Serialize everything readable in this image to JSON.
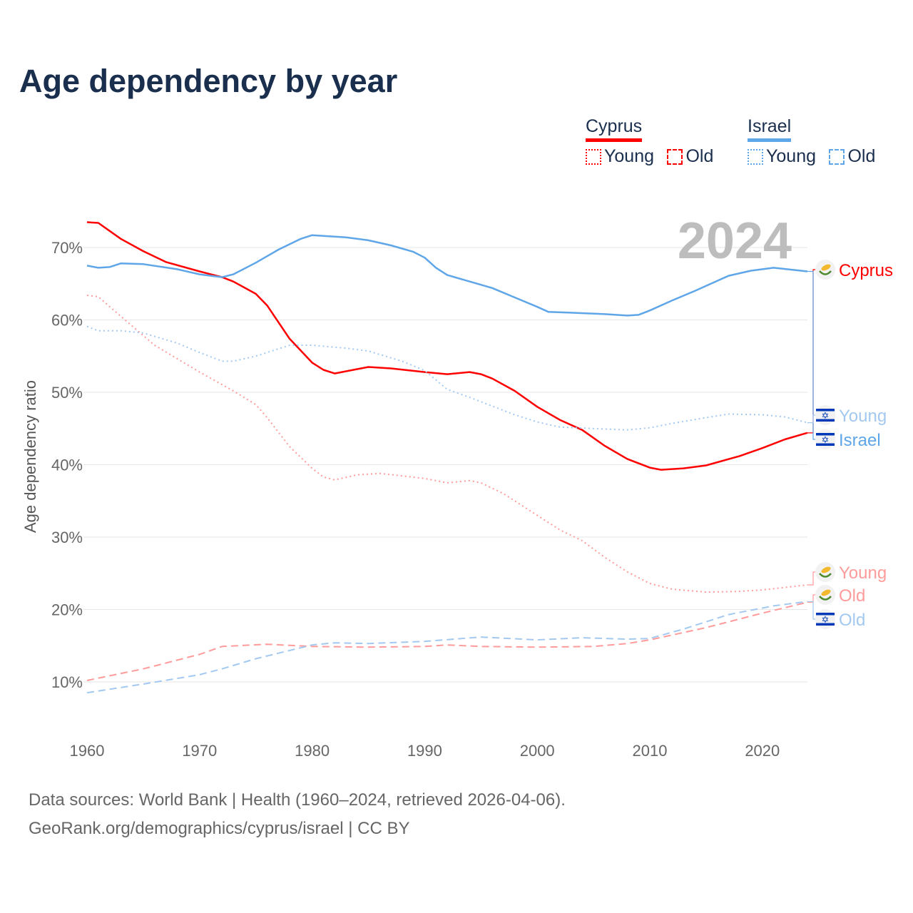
{
  "chart_data": {
    "type": "line",
    "title": "Age dependency by year",
    "xlabel": "",
    "ylabel": "Age dependency ratio",
    "xlim": [
      1960,
      2024
    ],
    "ylim": [
      0,
      75
    ],
    "x_ticks": [
      "1960",
      "1970",
      "1980",
      "1990",
      "2000",
      "2010",
      "2020"
    ],
    "y_ticks": [
      "10%",
      "20%",
      "30%",
      "40%",
      "50%",
      "60%",
      "70%"
    ],
    "y_tick_values": [
      10,
      20,
      30,
      40,
      50,
      60,
      70
    ],
    "x_tick_values": [
      1960,
      1970,
      1980,
      1990,
      2000,
      2010,
      2020
    ],
    "current_year": "2024",
    "grid": true,
    "legend_position": "top-right",
    "series": [
      {
        "name": "Cyprus",
        "label": "Cyprus",
        "kind": "total",
        "color": "#ff0000",
        "flag": "cyprus",
        "x": [
          1960,
          1961,
          1963,
          1965,
          1967,
          1970,
          1972,
          1973,
          1975,
          1976,
          1978,
          1980,
          1981,
          1982,
          1984,
          1985,
          1987,
          1990,
          1992,
          1994,
          1995,
          1996,
          1998,
          2000,
          2002,
          2004,
          2006,
          2008,
          2010,
          2011,
          2013,
          2015,
          2018,
          2020,
          2022,
          2024
        ],
        "values": [
          73.5,
          73.4,
          71.2,
          69.5,
          68.0,
          66.7,
          65.9,
          65.3,
          63.6,
          62.0,
          57.4,
          54.1,
          53.1,
          52.6,
          53.2,
          53.5,
          53.3,
          52.8,
          52.5,
          52.8,
          52.5,
          51.9,
          50.2,
          48.0,
          46.2,
          44.8,
          42.6,
          40.8,
          39.6,
          39.3,
          39.5,
          39.9,
          41.2,
          42.3,
          43.5,
          44.4
        ]
      },
      {
        "name": "Israel",
        "label": "Israel",
        "kind": "total",
        "color": "#5fa6e8",
        "flag": "israel",
        "x": [
          1960,
          1961,
          1962,
          1963,
          1965,
          1968,
          1970,
          1972,
          1973,
          1975,
          1977,
          1979,
          1980,
          1983,
          1985,
          1987,
          1989,
          1990,
          1991,
          1992,
          1994,
          1996,
          1998,
          2000,
          2001,
          2003,
          2006,
          2008,
          2009,
          2010,
          2012,
          2014,
          2017,
          2019,
          2021,
          2024
        ],
        "values": [
          67.5,
          67.2,
          67.3,
          67.8,
          67.7,
          67.0,
          66.3,
          65.9,
          66.3,
          67.9,
          69.7,
          71.2,
          71.7,
          71.4,
          71.0,
          70.3,
          69.4,
          68.6,
          67.2,
          66.2,
          65.3,
          64.4,
          63.1,
          61.8,
          61.1,
          61.0,
          60.8,
          60.6,
          60.7,
          61.3,
          62.7,
          64.0,
          66.1,
          66.8,
          67.2,
          66.7
        ]
      },
      {
        "name": "Cyprus Young",
        "label": "Young",
        "kind": "young",
        "color": "#ff9b9b",
        "flag": "cyprus",
        "x": [
          1960,
          1961,
          1963,
          1966,
          1970,
          1973,
          1975,
          1976,
          1978,
          1980,
          1981,
          1982,
          1984,
          1986,
          1990,
          1992,
          1994,
          1995,
          1997,
          2000,
          2002,
          2004,
          2006,
          2008,
          2010,
          2012,
          2015,
          2018,
          2020,
          2024
        ],
        "values": [
          63.4,
          63.2,
          60.5,
          56.5,
          52.8,
          50.2,
          48.3,
          46.5,
          42.5,
          39.5,
          38.3,
          37.9,
          38.6,
          38.8,
          38.1,
          37.5,
          37.8,
          37.5,
          36.0,
          33.0,
          31.0,
          29.5,
          27.2,
          25.2,
          23.6,
          22.8,
          22.4,
          22.5,
          22.7,
          23.4
        ]
      },
      {
        "name": "Israel Young",
        "label": "Young",
        "kind": "young",
        "color": "#a3c9f0",
        "flag": "israel",
        "x": [
          1960,
          1961,
          1963,
          1965,
          1968,
          1970,
          1972,
          1973,
          1975,
          1978,
          1980,
          1983,
          1985,
          1988,
          1990,
          1992,
          1994,
          1996,
          1998,
          2000,
          2002,
          2005,
          2008,
          2010,
          2012,
          2015,
          2017,
          2020,
          2022,
          2024
        ],
        "values": [
          59.1,
          58.5,
          58.5,
          58.2,
          56.8,
          55.5,
          54.3,
          54.3,
          55.0,
          56.5,
          56.5,
          56.1,
          55.7,
          54.3,
          53.0,
          50.4,
          49.3,
          48.1,
          46.9,
          45.9,
          45.2,
          45.0,
          44.8,
          45.1,
          45.7,
          46.5,
          47.0,
          46.9,
          46.6,
          45.8
        ]
      },
      {
        "name": "Cyprus Old",
        "label": "Old",
        "kind": "old",
        "color": "#ff9b9b",
        "flag": "cyprus",
        "x": [
          1960,
          1965,
          1970,
          1972,
          1976,
          1980,
          1985,
          1990,
          1992,
          1995,
          2000,
          2005,
          2008,
          2010,
          2015,
          2020,
          2024
        ],
        "values": [
          10.2,
          11.8,
          13.8,
          14.9,
          15.2,
          14.9,
          14.8,
          14.9,
          15.1,
          14.9,
          14.8,
          14.9,
          15.3,
          15.8,
          17.5,
          19.5,
          21.0
        ]
      },
      {
        "name": "Israel Old",
        "label": "Old",
        "kind": "old",
        "color": "#a3c9f0",
        "flag": "israel",
        "x": [
          1960,
          1965,
          1970,
          1972,
          1975,
          1980,
          1982,
          1985,
          1990,
          1995,
          2000,
          2004,
          2008,
          2010,
          2013,
          2017,
          2021,
          2024
        ],
        "values": [
          8.5,
          9.7,
          11.0,
          11.8,
          13.2,
          15.1,
          15.4,
          15.3,
          15.6,
          16.2,
          15.8,
          16.1,
          15.9,
          16.0,
          17.3,
          19.3,
          20.5,
          21.1
        ]
      }
    ]
  },
  "legend": [
    {
      "country": "Cyprus",
      "color": "#ff0000",
      "young": "Young",
      "old": "Old"
    },
    {
      "country": "Israel",
      "color": "#5fa6e8",
      "young": "Young",
      "old": "Old"
    }
  ],
  "footer": {
    "line1": "Data sources: World Bank | Health (1960–2024, retrieved 2026-04-06).",
    "line2": "GeoRank.org/demographics/cyprus/israel | CC BY"
  }
}
